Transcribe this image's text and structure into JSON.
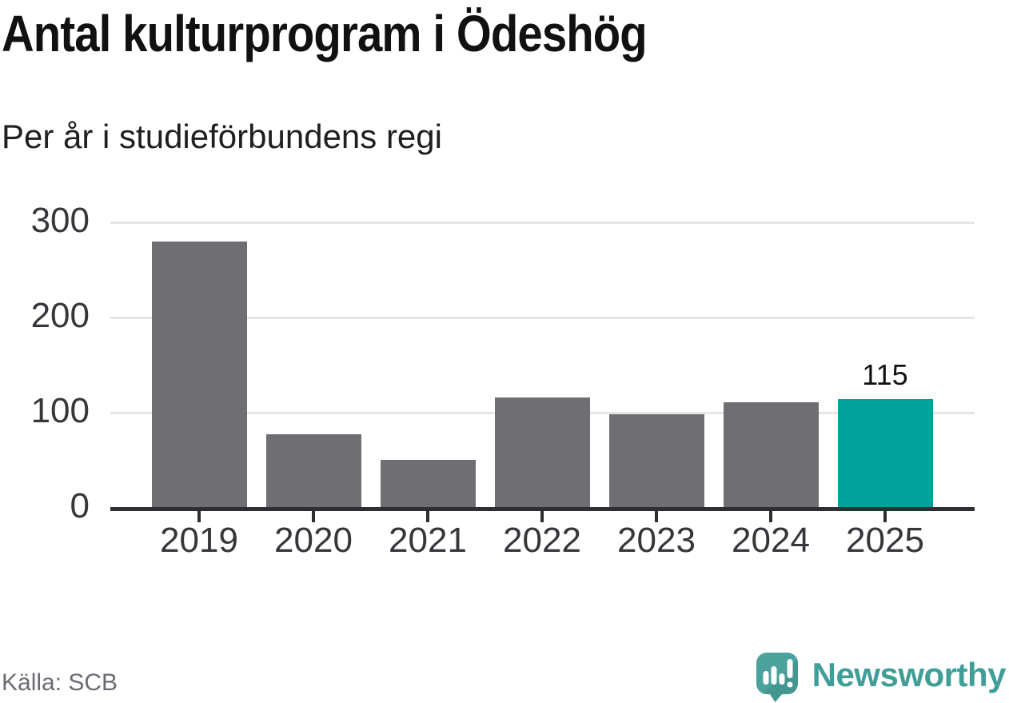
{
  "chart_data": {
    "type": "bar",
    "title": "Antal kulturprogram i Ödeshög",
    "subtitle": "Per år i studieförbundens regi",
    "categories": [
      "2019",
      "2020",
      "2021",
      "2022",
      "2023",
      "2024",
      "2025"
    ],
    "values": [
      280,
      78,
      51,
      117,
      99,
      112,
      115
    ],
    "highlight_index": 6,
    "data_label": {
      "index": 6,
      "text": "115"
    },
    "xlabel": "",
    "ylabel": "",
    "yticks": [
      0,
      100,
      200,
      300
    ],
    "ylim": [
      0,
      300
    ],
    "grid": "horizontal-only",
    "legend": "none",
    "colors": {
      "bar": "#6e6e73",
      "highlight": "#00a29b",
      "gridline": "#e6e6e6",
      "axis": "#2f2f33",
      "axis_text": "#36363b"
    }
  },
  "footer": {
    "source": "Källa: SCB",
    "brand": "Newsworthy",
    "brand_color": "#3f9f98",
    "logo_icon": "newsworthy-speech-bubble-barchart-icon"
  }
}
